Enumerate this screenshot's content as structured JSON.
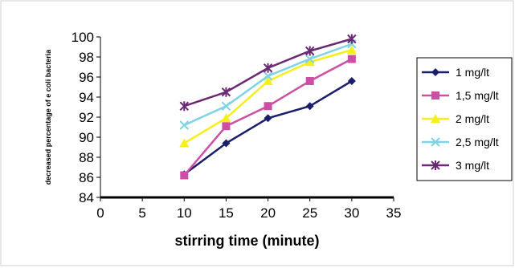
{
  "chart_data": {
    "type": "line",
    "title": "",
    "xlabel": "stirring time (minute)",
    "ylabel": "decreased percentage of e coli bacteria",
    "xlim": [
      0,
      35
    ],
    "ylim": [
      84,
      100
    ],
    "x_ticks": [
      "0",
      "5",
      "10",
      "15",
      "20",
      "25",
      "30",
      "35"
    ],
    "y_ticks": [
      "84",
      "86",
      "88",
      "90",
      "92",
      "94",
      "96",
      "98",
      "100"
    ],
    "grid": false,
    "legend_position": "right",
    "x": [
      10,
      15,
      20,
      25,
      30
    ],
    "series": [
      {
        "name": "1 mg/lt",
        "values": [
          86.3,
          89.4,
          91.9,
          93.1,
          95.6
        ],
        "color": "#1b1f6b",
        "marker": "diamond"
      },
      {
        "name": "1,5 mg/lt",
        "values": [
          86.2,
          91.1,
          93.1,
          95.6,
          97.8
        ],
        "color": "#cc4fa6",
        "marker": "square"
      },
      {
        "name": "2 mg/lt",
        "values": [
          89.4,
          91.9,
          95.6,
          97.5,
          98.7
        ],
        "color": "#f5ef1a",
        "marker": "triangle"
      },
      {
        "name": "2,5 mg/lt",
        "values": [
          91.2,
          93.1,
          96.1,
          97.8,
          99.3
        ],
        "color": "#7fd3e3",
        "marker": "x"
      },
      {
        "name": "3 mg/lt",
        "values": [
          93.1,
          94.5,
          96.9,
          98.6,
          99.8
        ],
        "color": "#6a2a73",
        "marker": "star"
      }
    ]
  }
}
